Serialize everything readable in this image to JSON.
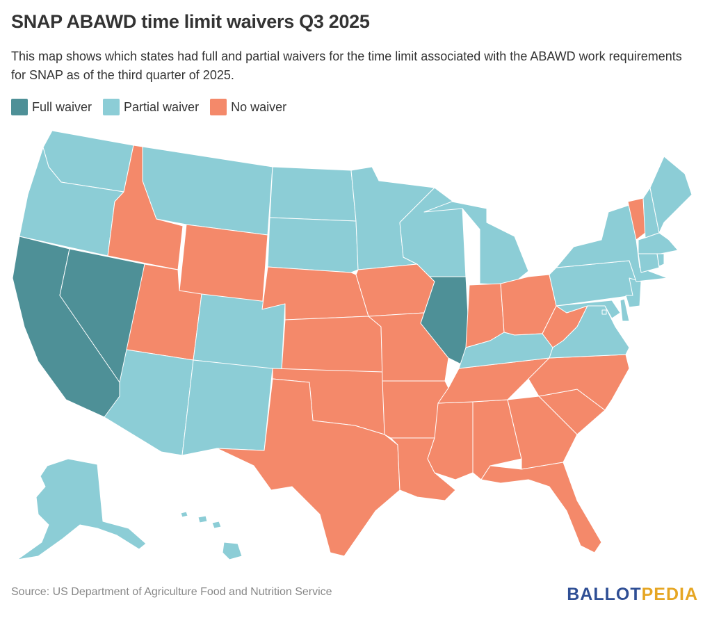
{
  "title": "SNAP ABAWD time limit waivers Q3 2025",
  "subtitle": "This map shows which states had full and partial waivers for the time limit associated with the ABAWD work requirements for SNAP as of the third quarter of 2025.",
  "legend": [
    {
      "key": "full",
      "label": "Full waiver",
      "color": "#4e9097"
    },
    {
      "key": "partial",
      "label": "Partial waiver",
      "color": "#8ccdd6"
    },
    {
      "key": "none",
      "label": "No waiver",
      "color": "#f4896a"
    }
  ],
  "states": {
    "CA": "full",
    "NV": "full",
    "IL": "full",
    "WA": "partial",
    "OR": "partial",
    "MT": "partial",
    "ND": "partial",
    "SD": "partial",
    "MN": "partial",
    "WI": "partial",
    "MI": "partial",
    "CO": "partial",
    "AZ": "partial",
    "NM": "partial",
    "KY": "partial",
    "VA": "partial",
    "MD": "partial",
    "DE": "partial",
    "NJ": "partial",
    "PA": "partial",
    "NY": "partial",
    "CT": "partial",
    "RI": "partial",
    "MA": "partial",
    "NH": "partial",
    "ME": "partial",
    "DC": "partial",
    "AK": "partial",
    "HI": "partial",
    "ID": "none",
    "WY": "none",
    "UT": "none",
    "NE": "none",
    "KS": "none",
    "OK": "none",
    "TX": "none",
    "IA": "none",
    "MO": "none",
    "AR": "none",
    "LA": "none",
    "MS": "none",
    "AL": "none",
    "GA": "none",
    "FL": "none",
    "SC": "none",
    "NC": "none",
    "TN": "none",
    "IN": "none",
    "OH": "none",
    "WV": "none",
    "VT": "none"
  },
  "source": "Source: US Department of Agriculture Food and Nutrition Service",
  "logo": {
    "part1": "BALLOT",
    "part2": "PEDIA"
  }
}
